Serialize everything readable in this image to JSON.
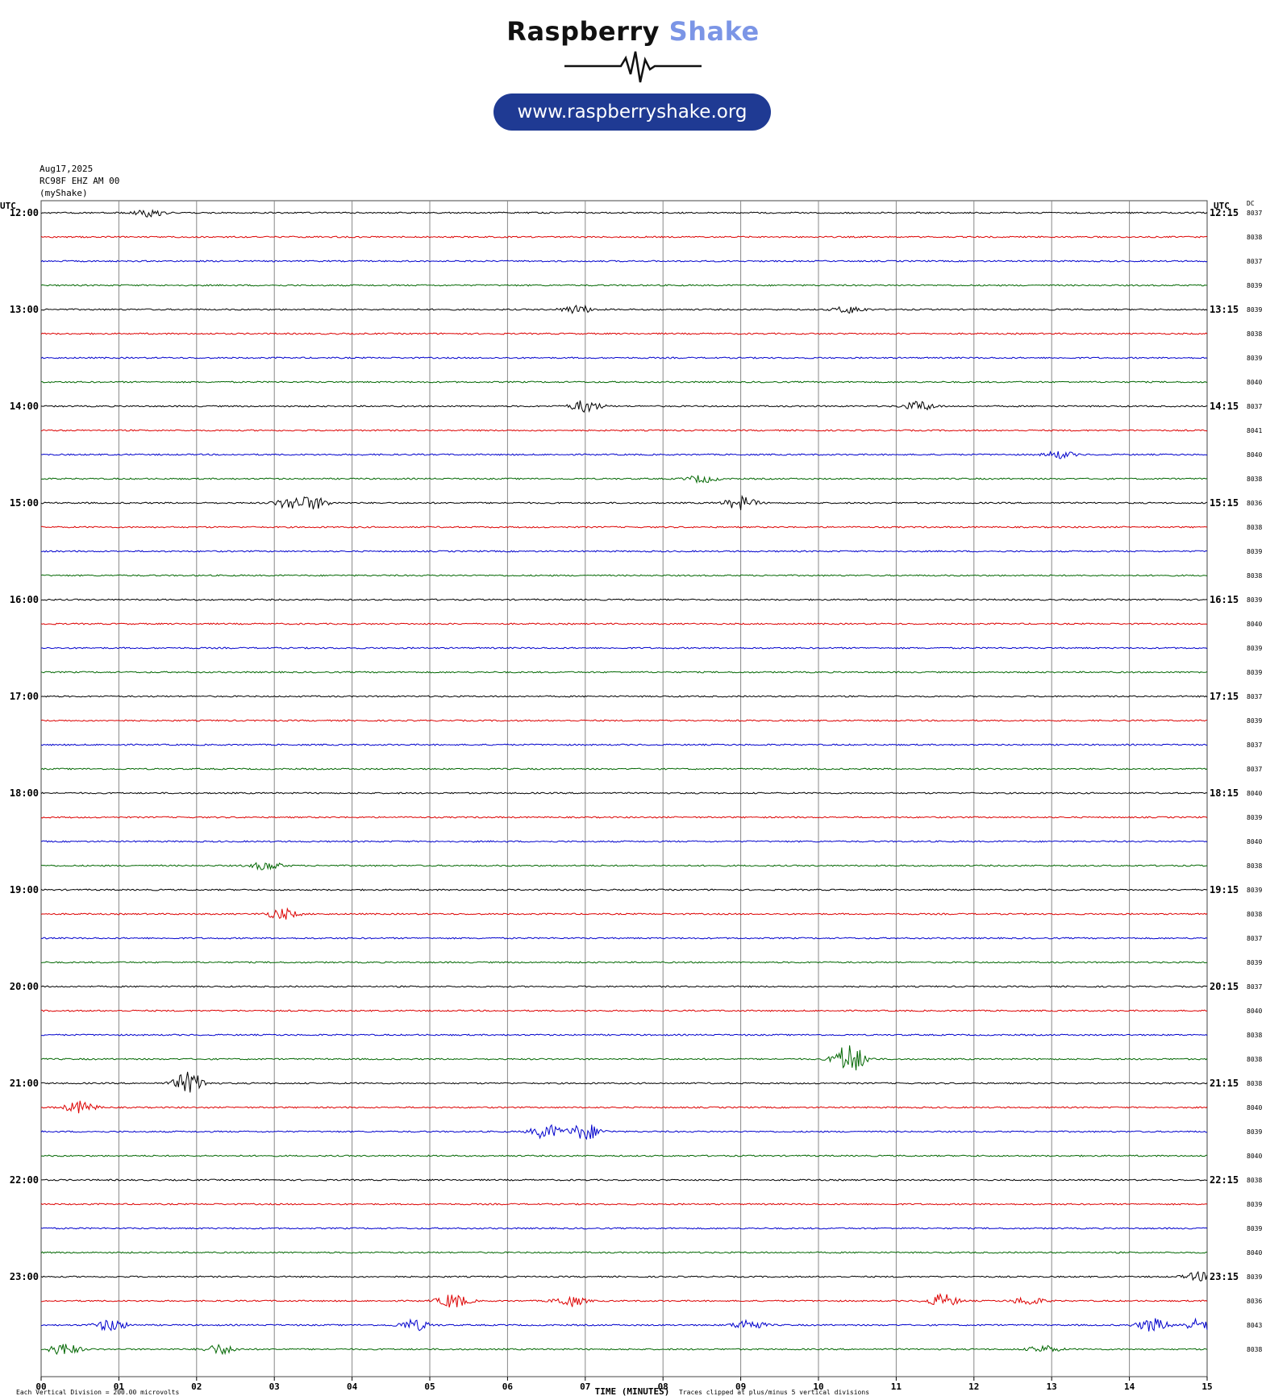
{
  "logo": {
    "word1": "Raspberry",
    "word2": "Shake",
    "url": "www.raspberryshake.org"
  },
  "header": {
    "date": "Aug17,2025",
    "station": "RC98F EHZ AM 00",
    "network": "(myShake)"
  },
  "labels": {
    "utc_left": "UTC",
    "utc_right": "UTC",
    "dc": "DC"
  },
  "footer": {
    "xlabel": "TIME (MINUTES)",
    "division": "Each Vertical Division =  200.00 microvolts",
    "clipping": "Traces clipped at plus/minus 5 vertical divisions"
  },
  "colors": {
    "cycle": [
      "#000000",
      "#dd0000",
      "#0000cc",
      "#006600"
    ],
    "logo_blue": "#1f3a93",
    "grid": "#888888"
  },
  "chart_data": {
    "type": "line",
    "title": "",
    "xlabel": "TIME (MINUTES)",
    "xlim": [
      0,
      15
    ],
    "x_ticks": [
      "00",
      "01",
      "02",
      "03",
      "04",
      "05",
      "06",
      "07",
      "08",
      "09",
      "10",
      "11",
      "12",
      "13",
      "14",
      "15"
    ],
    "rows_per_hour": 4,
    "hours_left": [
      "12:00",
      "13:00",
      "14:00",
      "15:00",
      "16:00",
      "17:00",
      "18:00",
      "19:00",
      "20:00",
      "21:00",
      "22:00",
      "23:00"
    ],
    "hours_right": [
      "12:15",
      "13:15",
      "14:15",
      "15:15",
      "16:15",
      "17:15",
      "18:15",
      "19:15",
      "20:15",
      "21:15",
      "22:15",
      "23:15"
    ],
    "dc_offsets": [
      8037,
      8038,
      8037,
      8039,
      8039,
      8038,
      8039,
      8040,
      8037,
      8041,
      8040,
      8038,
      8036,
      8038,
      8039,
      8038,
      8039,
      8040,
      8039,
      8039,
      8037,
      8039,
      8037,
      8037,
      8040,
      8039,
      8040,
      8038,
      8039,
      8038,
      8037,
      8039,
      8037,
      8040,
      8038,
      8038,
      8038,
      8040,
      8039,
      8040,
      8038,
      8039,
      8039,
      8040,
      8039,
      8036,
      8043,
      8038
    ],
    "events": [
      {
        "row": 0,
        "minute": 1.4,
        "amp": 0.3
      },
      {
        "row": 4,
        "minute": 6.9,
        "amp": 0.35
      },
      {
        "row": 4,
        "minute": 10.4,
        "amp": 0.3
      },
      {
        "row": 8,
        "minute": 7.0,
        "amp": 0.5
      },
      {
        "row": 8,
        "minute": 11.3,
        "amp": 0.4
      },
      {
        "row": 10,
        "minute": 13.1,
        "amp": 0.3
      },
      {
        "row": 11,
        "minute": 8.5,
        "amp": 0.3
      },
      {
        "row": 12,
        "minute": 3.2,
        "amp": 0.45
      },
      {
        "row": 12,
        "minute": 3.5,
        "amp": 0.5
      },
      {
        "row": 12,
        "minute": 9.0,
        "amp": 0.55
      },
      {
        "row": 27,
        "minute": 2.9,
        "amp": 0.35
      },
      {
        "row": 29,
        "minute": 3.1,
        "amp": 0.45
      },
      {
        "row": 35,
        "minute": 10.4,
        "amp": 1.3
      },
      {
        "row": 36,
        "minute": 1.9,
        "amp": 0.9
      },
      {
        "row": 37,
        "minute": 0.5,
        "amp": 0.5
      },
      {
        "row": 38,
        "minute": 6.5,
        "amp": 0.6
      },
      {
        "row": 38,
        "minute": 7.0,
        "amp": 0.7
      },
      {
        "row": 44,
        "minute": 14.9,
        "amp": 0.35
      },
      {
        "row": 45,
        "minute": 5.3,
        "amp": 0.6
      },
      {
        "row": 45,
        "minute": 6.8,
        "amp": 0.45
      },
      {
        "row": 45,
        "minute": 11.6,
        "amp": 0.55
      },
      {
        "row": 45,
        "minute": 12.7,
        "amp": 0.35
      },
      {
        "row": 46,
        "minute": 0.9,
        "amp": 0.5
      },
      {
        "row": 46,
        "minute": 4.8,
        "amp": 0.45
      },
      {
        "row": 46,
        "minute": 9.1,
        "amp": 0.45
      },
      {
        "row": 46,
        "minute": 14.3,
        "amp": 0.55
      },
      {
        "row": 46,
        "minute": 14.9,
        "amp": 0.5
      },
      {
        "row": 47,
        "minute": 0.3,
        "amp": 0.5
      },
      {
        "row": 47,
        "minute": 2.3,
        "amp": 0.4
      },
      {
        "row": 47,
        "minute": 12.9,
        "amp": 0.3
      }
    ]
  }
}
